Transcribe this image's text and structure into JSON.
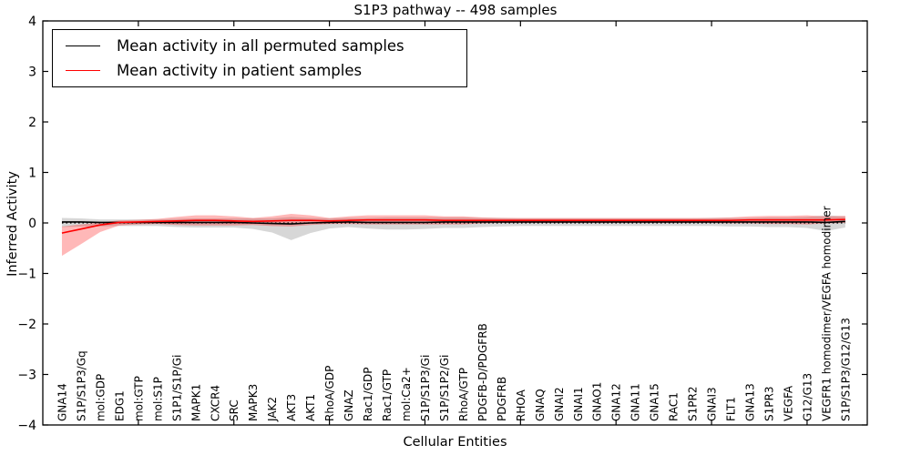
{
  "chart_data": {
    "type": "line",
    "title": "S1P3 pathway -- 498 samples",
    "xlabel": "Cellular Entities",
    "ylabel": "Inferred Activity",
    "ylim": [
      -4,
      4
    ],
    "xlim": [
      0,
      43.15
    ],
    "grid": false,
    "legend_position": "upper left",
    "ytick_values": [
      -4,
      -3,
      -2,
      -1,
      0,
      1,
      2,
      3,
      4
    ],
    "ytick_labels": [
      "−4",
      "−3",
      "−2",
      "−1",
      "0",
      "1",
      "2",
      "3",
      "4"
    ],
    "xtick_values": [
      5,
      10,
      15,
      20,
      25,
      30,
      35,
      40
    ],
    "categories": [
      "GNA14",
      "S1P/S1P3/Gq",
      "mol:GDP",
      "EDG1",
      "mol:GTP",
      "mol:S1P",
      "S1P1/S1P/Gi",
      "MAPK1",
      "CXCR4",
      "SRC",
      "MAPK3",
      "JAK2",
      "AKT3",
      "AKT1",
      "RhoA/GDP",
      "GNAZ",
      "Rac1/GDP",
      "Rac1/GTP",
      "mol:Ca2+",
      "S1P/S1P3/Gi",
      "S1P/S1P2/Gi",
      "RhoA/GTP",
      "PDGFB-D/PDGFRB",
      "PDGFRB",
      "RHOA",
      "GNAQ",
      "GNAI2",
      "GNAI1",
      "GNAO1",
      "GNA12",
      "GNA11",
      "GNA15",
      "RAC1",
      "S1PR2",
      "GNAI3",
      "FLT1",
      "GNA13",
      "S1PR3",
      "VEGFA",
      "G12/G13",
      "VEGFR1 homodimer/VEGFA homodimer",
      "S1P/S1P3/G12/G13"
    ],
    "zero_line": {
      "value": 0,
      "style": "dotted",
      "color": "#000000"
    },
    "series": [
      {
        "name": "Mean activity in all permuted samples",
        "color": "#000000",
        "band_color": "rgba(110,110,110,0.28)",
        "values": [
          0.02,
          0.02,
          0.01,
          0.01,
          0.01,
          0.01,
          0.01,
          0.01,
          0.01,
          0.01,
          0.0,
          -0.01,
          -0.02,
          0.0,
          0.01,
          0.02,
          0.01,
          0.01,
          0.01,
          0.01,
          0.02,
          0.02,
          0.02,
          0.02,
          0.02,
          0.02,
          0.02,
          0.02,
          0.02,
          0.02,
          0.02,
          0.02,
          0.02,
          0.02,
          0.02,
          0.02,
          0.02,
          0.02,
          0.02,
          0.02,
          0.01,
          0.03
        ],
        "band_upper": [
          0.08,
          0.07,
          0.06,
          0.06,
          0.06,
          0.06,
          0.07,
          0.08,
          0.08,
          0.08,
          0.09,
          0.1,
          0.14,
          0.1,
          0.08,
          0.08,
          0.09,
          0.1,
          0.1,
          0.1,
          0.09,
          0.09,
          0.08,
          0.08,
          0.07,
          0.07,
          0.07,
          0.07,
          0.07,
          0.07,
          0.07,
          0.07,
          0.07,
          0.07,
          0.08,
          0.08,
          0.08,
          0.09,
          0.09,
          0.1,
          0.14,
          0.1
        ],
        "band_lower": [
          0.1,
          0.09,
          0.08,
          0.07,
          0.07,
          0.07,
          0.09,
          0.1,
          0.1,
          0.1,
          0.12,
          0.18,
          0.32,
          0.2,
          0.12,
          0.1,
          0.12,
          0.14,
          0.14,
          0.13,
          0.12,
          0.12,
          0.1,
          0.09,
          0.08,
          0.08,
          0.08,
          0.08,
          0.08,
          0.08,
          0.08,
          0.08,
          0.08,
          0.08,
          0.08,
          0.09,
          0.09,
          0.1,
          0.1,
          0.12,
          0.17,
          0.12
        ]
      },
      {
        "name": "Mean activity in patient samples",
        "color": "#ff0000",
        "band_color": "rgba(255,0,0,0.28)",
        "values": [
          -0.2,
          -0.12,
          -0.04,
          0.01,
          0.02,
          0.03,
          0.04,
          0.05,
          0.05,
          0.04,
          0.03,
          0.04,
          0.05,
          0.05,
          0.04,
          0.05,
          0.06,
          0.06,
          0.06,
          0.06,
          0.05,
          0.05,
          0.05,
          0.05,
          0.05,
          0.05,
          0.05,
          0.05,
          0.05,
          0.05,
          0.05,
          0.05,
          0.05,
          0.05,
          0.05,
          0.05,
          0.06,
          0.06,
          0.06,
          0.06,
          0.06,
          0.07
        ],
        "band_upper": [
          0.13,
          0.09,
          0.05,
          0.04,
          0.04,
          0.05,
          0.08,
          0.1,
          0.1,
          0.09,
          0.07,
          0.09,
          0.13,
          0.1,
          0.06,
          0.08,
          0.09,
          0.09,
          0.09,
          0.09,
          0.08,
          0.08,
          0.06,
          0.05,
          0.05,
          0.05,
          0.05,
          0.05,
          0.05,
          0.05,
          0.05,
          0.05,
          0.05,
          0.05,
          0.05,
          0.06,
          0.07,
          0.08,
          0.08,
          0.09,
          0.07,
          0.07
        ],
        "band_lower": [
          0.45,
          0.3,
          0.14,
          0.06,
          0.05,
          0.05,
          0.08,
          0.1,
          0.1,
          0.09,
          0.07,
          0.1,
          0.12,
          0.09,
          0.06,
          0.07,
          0.09,
          0.09,
          0.09,
          0.09,
          0.08,
          0.08,
          0.06,
          0.05,
          0.05,
          0.05,
          0.05,
          0.05,
          0.05,
          0.05,
          0.05,
          0.05,
          0.05,
          0.05,
          0.05,
          0.06,
          0.07,
          0.08,
          0.08,
          0.09,
          0.07,
          0.07
        ]
      }
    ]
  }
}
